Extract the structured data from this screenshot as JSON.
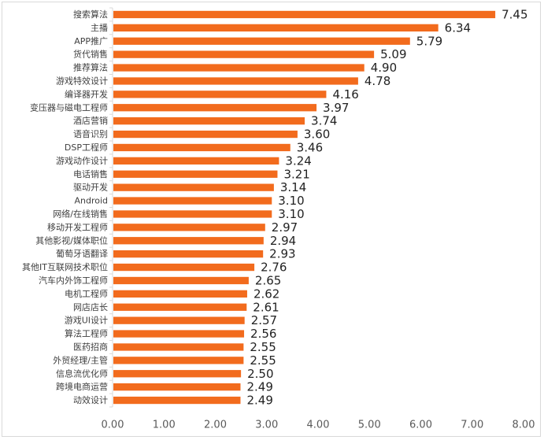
{
  "chart_data": {
    "type": "bar",
    "orientation": "horizontal",
    "title": "",
    "xlabel": "",
    "ylabel": "",
    "categories": [
      "搜索算法",
      "主播",
      "APP推广",
      "货代销售",
      "推荐算法",
      "游戏特效设计",
      "编译器开发",
      "变压器与磁电工程师",
      "酒店营销",
      "语音识别",
      "DSP工程师",
      "游戏动作设计",
      "电话销售",
      "驱动开发",
      "Android",
      "网络/在线销售",
      "移动开发工程师",
      "其他影视/媒体职位",
      "葡萄牙语翻译",
      "其他IT互联网技术职位",
      "汽车内外饰工程师",
      "电机工程师",
      "网店店长",
      "游戏UI设计",
      "算法工程师",
      "医药招商",
      "外贸经理/主管",
      "信息流优化师",
      "跨境电商运营",
      "动效设计"
    ],
    "values": [
      7.45,
      6.34,
      5.79,
      5.09,
      4.9,
      4.78,
      4.16,
      3.97,
      3.74,
      3.6,
      3.46,
      3.24,
      3.21,
      3.14,
      3.1,
      3.1,
      2.97,
      2.94,
      2.93,
      2.76,
      2.65,
      2.62,
      2.61,
      2.57,
      2.56,
      2.55,
      2.55,
      2.5,
      2.49,
      2.49
    ],
    "xlim": [
      0,
      8
    ],
    "xticks": [
      "0.00",
      "1.00",
      "2.00",
      "3.00",
      "4.00",
      "5.00",
      "6.00",
      "7.00",
      "8.00"
    ],
    "bar_color": "#F26B1D",
    "grid": false,
    "legend": "none"
  }
}
